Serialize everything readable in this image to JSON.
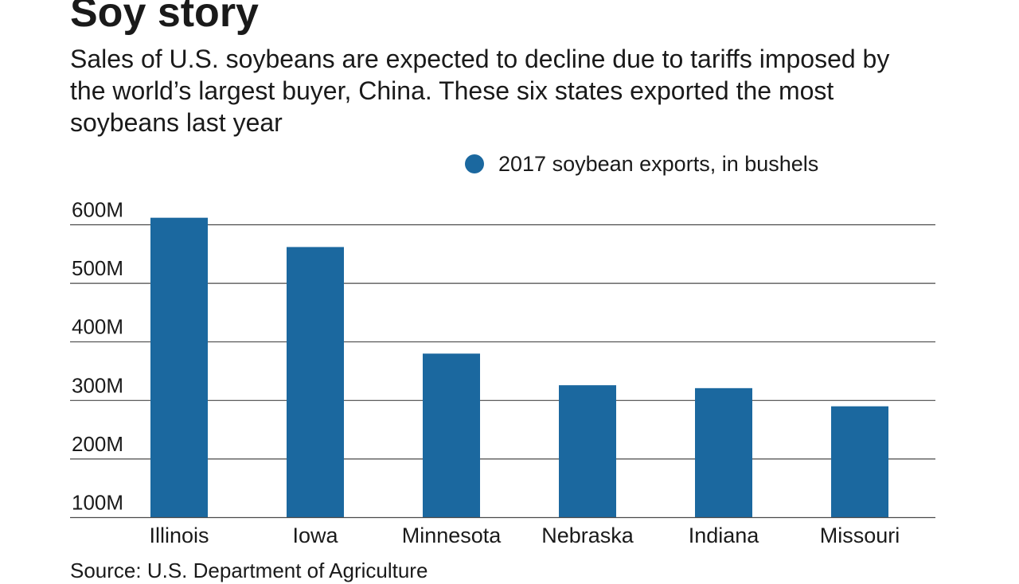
{
  "header": {
    "title": "Soy story",
    "subtitle": "Sales of U.S. soybeans are expected to decline due to tariffs imposed by the world’s largest buyer, China. These six states exported the most soybeans last year"
  },
  "legend": {
    "label": "2017 soybean exports, in bushels"
  },
  "footer": {
    "source": "Source: U.S. Department of Agriculture"
  },
  "colors": {
    "bar": "#1b689f",
    "gridline": "#4a4a4a",
    "text": "#1a1a1a"
  },
  "chart_data": {
    "type": "bar",
    "categories": [
      "Illinois",
      "Iowa",
      "Minnesota",
      "Nebraska",
      "Indiana",
      "Missouri"
    ],
    "series": [
      {
        "name": "2017 soybean exports, in bushels",
        "values": [
          612,
          562,
          380,
          326,
          321,
          290
        ]
      }
    ],
    "value_unit": "million bushels",
    "yticks": [
      100,
      200,
      300,
      400,
      500,
      600
    ],
    "ytick_labels": [
      "100M",
      "200M",
      "300M",
      "400M",
      "500M",
      "600M"
    ],
    "ylim": [
      100,
      600
    ],
    "grid": true,
    "legend_position": "top-right"
  }
}
